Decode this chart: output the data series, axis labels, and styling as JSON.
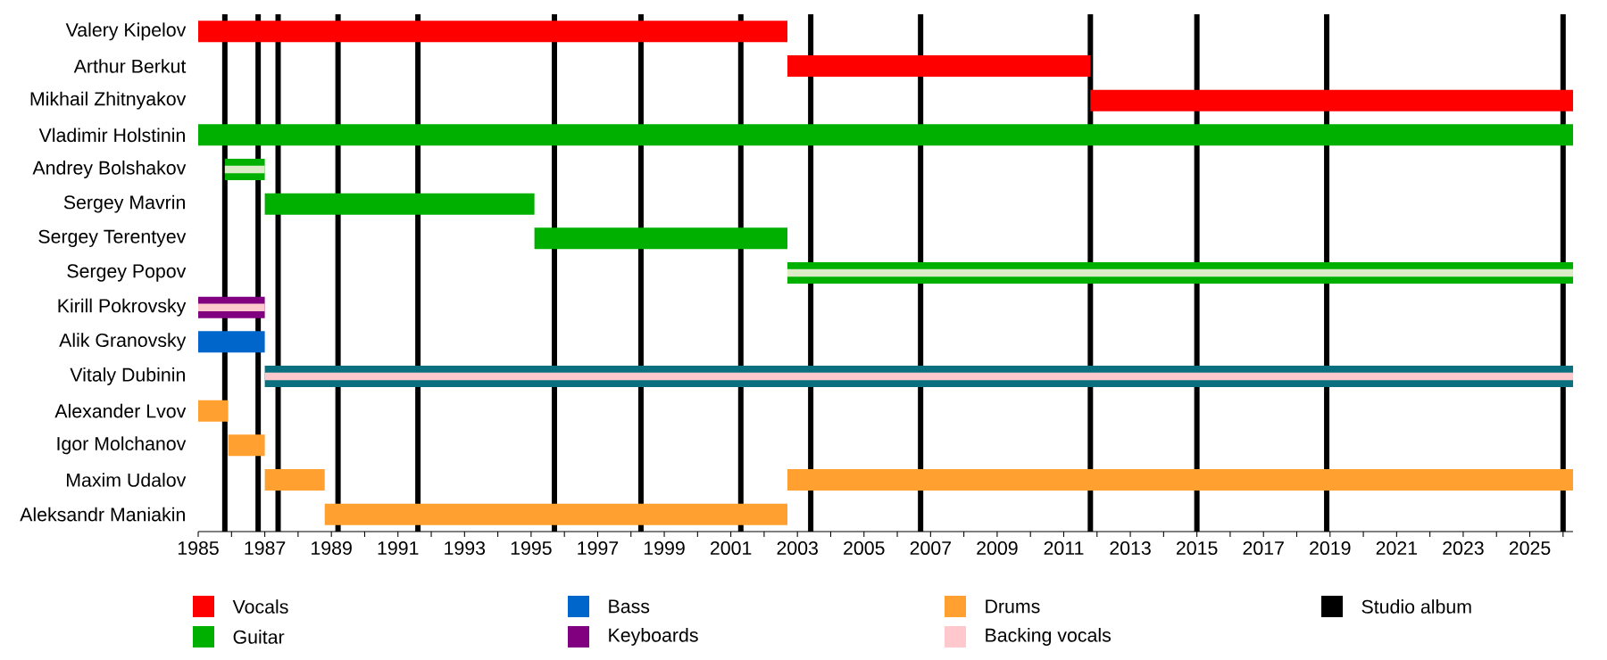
{
  "chart_data": {
    "type": "bar",
    "orientation": "horizontal",
    "legend": "bottom",
    "categories": [
      "Valery Kipelov",
      "Arthur Berkut",
      "Mikhail Zhitnyakov",
      "Vladimir Holstinin",
      "Andrey Bolshakov",
      "Sergey Mavrin",
      "Sergey Terentyev",
      "Sergey Popov",
      "Kirill Pokrovsky",
      "Alik Granovsky",
      "Vitaly Dubinin",
      "Alexander Lvov",
      "Igor Molchanov",
      "Maxim Udalov",
      "Aleksandr Maniakin"
    ],
    "xlim": [
      1985,
      2026.3
    ],
    "xticks": [
      1985,
      {
        "value": 1986,
        "label": null
      },
      1987,
      {
        "value": 1988,
        "label": null
      },
      1989,
      {
        "value": 1990,
        "label": null
      },
      1991,
      {
        "value": 1992,
        "label": null
      },
      1993,
      {
        "value": 1994,
        "label": null
      },
      1995,
      {
        "value": 1996,
        "label": null
      },
      1997,
      {
        "value": 1998,
        "label": null
      },
      1999,
      {
        "value": 2000,
        "label": null
      },
      2001,
      {
        "value": 2002,
        "label": null
      },
      2003,
      {
        "value": 2004,
        "label": null
      },
      2005,
      {
        "value": 2006,
        "label": null
      },
      2007,
      {
        "value": 2008,
        "label": null
      },
      2009,
      {
        "value": 2010,
        "label": null
      },
      2011,
      {
        "value": 2012,
        "label": null
      },
      2013,
      {
        "value": 2014,
        "label": null
      },
      2015,
      {
        "value": 2016,
        "label": null
      },
      2017,
      {
        "value": 2018,
        "label": null
      },
      2019,
      {
        "value": 2020,
        "label": null
      },
      2021,
      {
        "value": 2022,
        "label": null
      },
      2023,
      {
        "value": 2024,
        "label": null
      },
      2025,
      {
        "value": 2026,
        "label": null
      }
    ],
    "series": [
      {
        "name": "Vocals",
        "color": "#ff0000",
        "base": [
          1985,
          2002.7,
          2011.8,
          null,
          null,
          null,
          null,
          null,
          null,
          null,
          null,
          null,
          null,
          null,
          null
        ],
        "values": [
          17.7,
          9.1,
          14.5,
          null,
          null,
          null,
          null,
          null,
          null,
          null,
          null,
          null,
          null,
          null,
          null
        ]
      },
      {
        "name": "Guitar",
        "color": "#00b000",
        "base": [
          null,
          null,
          null,
          1985,
          1985.8,
          1987,
          1995.1,
          2002.7,
          null,
          null,
          null,
          null,
          null,
          null,
          null
        ],
        "values": [
          null,
          null,
          null,
          41.3,
          1.2,
          8.1,
          7.6,
          23.6,
          null,
          null,
          null,
          null,
          null,
          null,
          null
        ]
      },
      {
        "name": "Bass",
        "color": "#0066cc",
        "colors": [
          null,
          null,
          null,
          null,
          null,
          null,
          null,
          null,
          null,
          "#0066cc",
          "#0a7080",
          null,
          null,
          null,
          null
        ],
        "base": [
          null,
          null,
          null,
          null,
          null,
          null,
          null,
          null,
          null,
          1985,
          1987,
          null,
          null,
          null,
          null
        ],
        "values": [
          null,
          null,
          null,
          null,
          null,
          null,
          null,
          null,
          null,
          2.0,
          39.3,
          null,
          null,
          null,
          null
        ]
      },
      {
        "name": "Keyboards",
        "color": "#800080",
        "base": [
          null,
          null,
          null,
          null,
          null,
          null,
          null,
          null,
          1985,
          null,
          null,
          null,
          null,
          null,
          null
        ],
        "values": [
          null,
          null,
          null,
          null,
          null,
          null,
          null,
          null,
          2.0,
          null,
          null,
          null,
          null,
          null,
          null
        ]
      },
      {
        "name": "Drums",
        "color": "#ffa030",
        "base": [
          null,
          null,
          null,
          null,
          null,
          null,
          null,
          null,
          null,
          null,
          null,
          1985,
          1985.9,
          1987,
          1988.8
        ],
        "values": [
          null,
          null,
          null,
          null,
          null,
          null,
          null,
          null,
          null,
          null,
          null,
          0.9,
          1.1,
          1.8,
          13.9
        ]
      },
      {
        "color": "#ffa030",
        "base": [
          null,
          null,
          null,
          null,
          null,
          null,
          null,
          null,
          null,
          null,
          null,
          null,
          null,
          2002.7,
          null
        ],
        "values": [
          null,
          null,
          null,
          null,
          null,
          null,
          null,
          null,
          null,
          null,
          null,
          null,
          null,
          23.6,
          null
        ]
      },
      {
        "name": "Backing vocals",
        "color": "#ffc8cc",
        "colors": [
          null,
          null,
          null,
          null,
          "#dcebc8",
          null,
          null,
          "#dcebc8",
          "#ffc8cc",
          null,
          "#ffc8cc",
          null,
          null,
          null,
          null
        ],
        "base": [
          null,
          null,
          null,
          null,
          1985.8,
          null,
          null,
          2002.7,
          1985,
          null,
          1987,
          null,
          null,
          null,
          null
        ],
        "values": [
          null,
          null,
          null,
          null,
          1.2,
          null,
          null,
          23.6,
          2.0,
          null,
          39.3,
          null,
          null,
          null,
          null
        ]
      }
    ],
    "ref_lines": [
      {
        "axis": "x",
        "value": 1985.8,
        "color": "#000000",
        "label": "Studio album"
      },
      {
        "axis": "x",
        "value": 1986.8,
        "color": "#000000"
      },
      {
        "axis": "x",
        "value": 1987.4,
        "color": "#000000"
      },
      {
        "axis": "x",
        "value": 1989.2,
        "color": "#000000"
      },
      {
        "axis": "x",
        "value": 1991.6,
        "color": "#000000"
      },
      {
        "axis": "x",
        "value": 1995.7,
        "color": "#000000"
      },
      {
        "axis": "x",
        "value": 1998.3,
        "color": "#000000"
      },
      {
        "axis": "x",
        "value": 2001.3,
        "color": "#000000"
      },
      {
        "axis": "x",
        "value": 2003.4,
        "color": "#000000"
      },
      {
        "axis": "x",
        "value": 2006.7,
        "color": "#000000"
      },
      {
        "axis": "x",
        "value": 2011.8,
        "color": "#000000"
      },
      {
        "axis": "x",
        "value": 2015.0,
        "color": "#000000"
      },
      {
        "axis": "x",
        "value": 2018.9,
        "color": "#000000"
      },
      {
        "axis": "x",
        "value": 2026.0,
        "color": "#000000"
      }
    ]
  }
}
